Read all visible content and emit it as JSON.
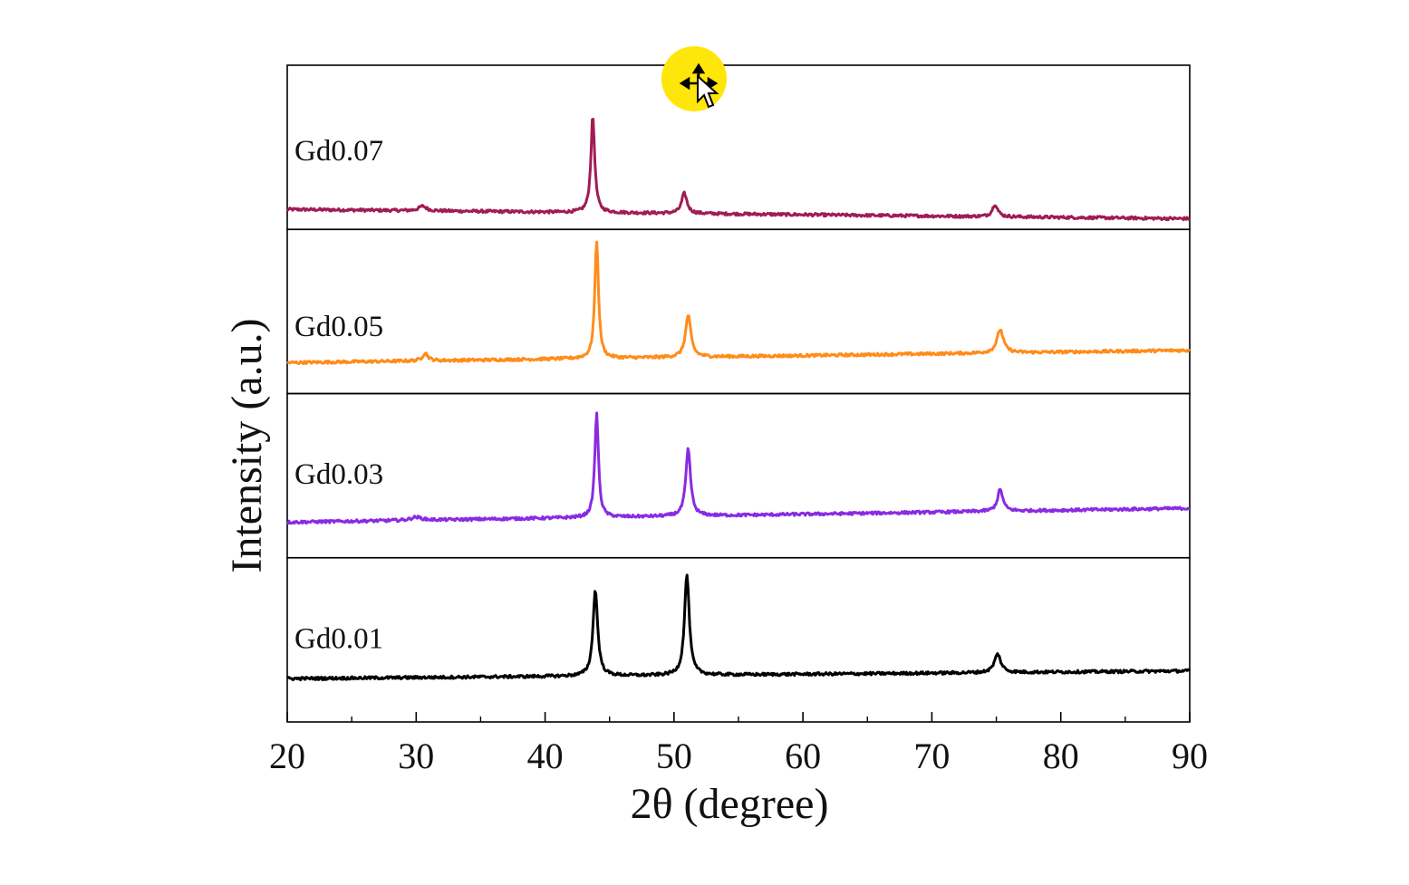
{
  "chart_data": {
    "type": "line",
    "layout": "stacked panels",
    "xlabel": "2θ (degree)",
    "ylabel": "Intensity (a.u.)",
    "xlim": [
      20,
      90
    ],
    "x_major_ticks": [
      20,
      30,
      40,
      50,
      60,
      70,
      80,
      90
    ],
    "x_tick_labels": [
      "20",
      "30",
      "40",
      "50",
      "60",
      "70",
      "80",
      "90"
    ],
    "x_minor_ticks": [
      25,
      35,
      45,
      55,
      65,
      75,
      85
    ],
    "grid": false,
    "series": [
      {
        "name": "Gd0.07",
        "color": "#a01c54",
        "baseline_start": 0.1,
        "baseline_end": 0.04,
        "peaks": [
          {
            "x": 30.5,
            "height": 0.03,
            "width": 0.35
          },
          {
            "x": 43.7,
            "height": 0.62,
            "width": 0.18
          },
          {
            "x": 50.8,
            "height": 0.13,
            "width": 0.25
          },
          {
            "x": 74.9,
            "height": 0.08,
            "width": 0.25
          }
        ]
      },
      {
        "name": "Gd0.05",
        "color": "#ff8c1a",
        "baseline_start": 0.17,
        "baseline_end": 0.25,
        "peaks": [
          {
            "x": 30.7,
            "height": 0.05,
            "width": 0.25
          },
          {
            "x": 44.0,
            "height": 0.76,
            "width": 0.17
          },
          {
            "x": 51.1,
            "height": 0.27,
            "width": 0.25
          },
          {
            "x": 75.3,
            "height": 0.15,
            "width": 0.3
          }
        ]
      },
      {
        "name": "Gd0.03",
        "color": "#8a2be2",
        "baseline_start": 0.2,
        "baseline_end": 0.29,
        "peaks": [
          {
            "x": 30.0,
            "height": 0.02,
            "width": 0.5
          },
          {
            "x": 44.0,
            "height": 0.67,
            "width": 0.17
          },
          {
            "x": 51.1,
            "height": 0.43,
            "width": 0.22
          },
          {
            "x": 75.3,
            "height": 0.14,
            "width": 0.25
          }
        ]
      },
      {
        "name": "Gd0.01",
        "color": "#000000",
        "baseline_start": 0.25,
        "baseline_end": 0.3,
        "peaks": [
          {
            "x": 43.9,
            "height": 0.55,
            "width": 0.22
          },
          {
            "x": 51.0,
            "height": 0.65,
            "width": 0.22
          },
          {
            "x": 75.1,
            "height": 0.12,
            "width": 0.3
          }
        ]
      }
    ]
  },
  "cursor": {
    "highlight_color": "#ffe60a",
    "icon": "move-cursor-icon"
  }
}
